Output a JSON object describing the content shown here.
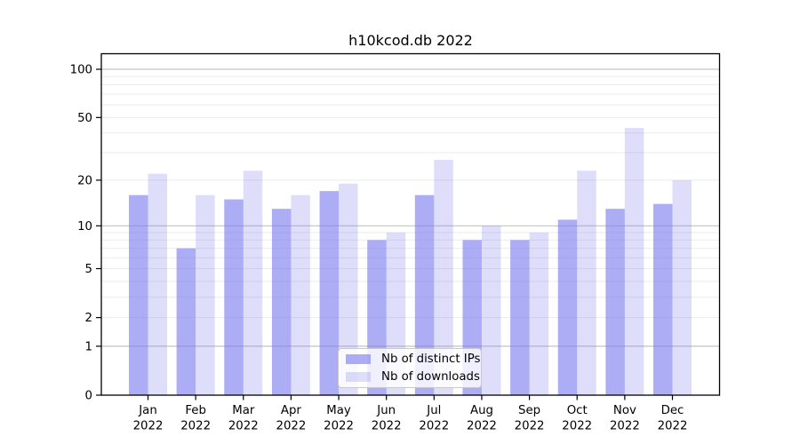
{
  "title": "h10kcod.db 2022",
  "chart_data": {
    "type": "bar",
    "title": "h10kcod.db 2022",
    "categories": [
      "Jan",
      "Feb",
      "Mar",
      "Apr",
      "May",
      "Jun",
      "Jul",
      "Aug",
      "Sep",
      "Oct",
      "Nov",
      "Dec"
    ],
    "x_tick_second_line": "2022",
    "series": [
      {
        "name": "Nb of distinct IPs",
        "values": [
          16,
          7,
          15,
          13,
          17,
          8,
          16,
          8,
          8,
          11,
          13,
          14
        ],
        "color": "rgba(123,123,240,0.62)"
      },
      {
        "name": "Nb of downloads",
        "values": [
          22,
          16,
          23,
          16,
          19,
          9,
          27,
          10,
          9,
          23,
          43,
          20
        ],
        "color": "rgba(123,123,240,0.25)"
      }
    ],
    "y_scale": "log10(1+x)",
    "y_tick_labels": [
      100,
      50,
      20,
      10,
      5,
      2,
      1,
      0
    ],
    "y_major_gridlines": [
      1,
      10,
      100
    ],
    "y_minor_gridlines": [
      2,
      3,
      4,
      5,
      6,
      7,
      8,
      9,
      20,
      30,
      40,
      50,
      60,
      70,
      80,
      90
    ],
    "ylim": [
      0,
      127
    ],
    "grid": true,
    "legend_position": "lower center"
  },
  "colors": {
    "background": "#ffffff",
    "spine": "#000000",
    "text": "#000000",
    "major_grid": "#c3c3c3",
    "minor_grid": "#ebebeb",
    "legend_border": "#c9c9c9",
    "legend_background": "rgba(255,255,255,0.8)"
  }
}
